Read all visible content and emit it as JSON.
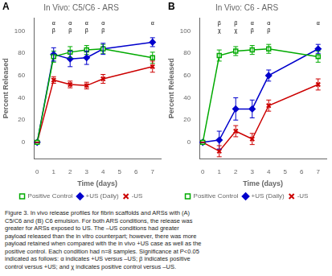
{
  "caption": "Figure 3. In vivo release profiles for fibrin scaffolds and ARSs with (A)\nC5/C6 and (B) C6 emulsion. For both ARS conditions, the release was\ngreater for ARSs exposed to US. The –US conditions had greater\npayload released than the in vitro counterpart; however, there was more\npayload retained when compared with the in vivo +US case as well as the\npositive control. Each condition had n=8 samples. Significance at P<0.05\nindicated as follows: α indicates +US versus –US; β indicates positive\ncontrol versus +US; and χ indicates positive control versus –US.",
  "chart_data": [
    {
      "type": "line",
      "panel_label": "A",
      "title": "In Vivo: C5/C6 - ARS",
      "x_label": "Time (days)",
      "y_label": "Percent Released",
      "x": [
        0,
        1,
        2,
        3,
        4,
        7
      ],
      "series": [
        {
          "name": "Positive Control",
          "color": "#00aa00",
          "marker": "square",
          "values": [
            0,
            77,
            81,
            83,
            84,
            76
          ],
          "errors": [
            0,
            5,
            5,
            4,
            4,
            5
          ]
        },
        {
          "name": "+US (Daily)",
          "color": "#0000cc",
          "marker": "diamond",
          "values": [
            0,
            79,
            75,
            76,
            84,
            90
          ],
          "errors": [
            0,
            6,
            7,
            6,
            5,
            4
          ]
        },
        {
          "name": "-US",
          "color": "#cc0000",
          "marker": "x",
          "values": [
            0,
            56,
            52,
            51,
            57,
            68
          ],
          "errors": [
            0,
            3,
            3,
            3,
            4,
            5
          ]
        }
      ],
      "annotations": [
        {
          "x": 1,
          "y": 104,
          "text": "α"
        },
        {
          "x": 2,
          "y": 104,
          "text": "α"
        },
        {
          "x": 3,
          "y": 104,
          "text": "α"
        },
        {
          "x": 4,
          "y": 104,
          "text": "α"
        },
        {
          "x": 7,
          "y": 104,
          "text": "α"
        },
        {
          "x": 1,
          "y": 98,
          "text": "β"
        },
        {
          "x": 2,
          "y": 98,
          "text": "β"
        },
        {
          "x": 3,
          "y": 98,
          "text": "β"
        },
        {
          "x": 4,
          "y": 98,
          "text": "β"
        }
      ],
      "xlim": [
        -0.2,
        7.5
      ],
      "ylim": [
        -15,
        112
      ],
      "xticks": [
        0,
        1,
        2,
        3,
        4,
        5,
        6,
        7
      ],
      "yticks": [
        0,
        20,
        40,
        60,
        80,
        100
      ],
      "grid": false,
      "legend": "bottom"
    },
    {
      "type": "line",
      "panel_label": "B",
      "title": "In Vivo: C6 - ARS",
      "x_label": "Time (days)",
      "y_label": "Percent Released",
      "x": [
        0,
        1,
        2,
        3,
        4,
        7
      ],
      "series": [
        {
          "name": "Positive Control",
          "color": "#00aa00",
          "marker": "square",
          "values": [
            0,
            78,
            82,
            83,
            84,
            77
          ],
          "errors": [
            0,
            5,
            4,
            4,
            4,
            5
          ]
        },
        {
          "name": "+US (Daily)",
          "color": "#0000cc",
          "marker": "diamond",
          "values": [
            0,
            2,
            30,
            30,
            60,
            84
          ],
          "errors": [
            0,
            8,
            10,
            8,
            5,
            4
          ]
        },
        {
          "name": "-US",
          "color": "#cc0000",
          "marker": "x",
          "values": [
            0,
            -8,
            10,
            3,
            33,
            52
          ],
          "errors": [
            0,
            5,
            5,
            5,
            5,
            5
          ]
        }
      ],
      "annotations": [
        {
          "x": 1,
          "y": 104,
          "text": "β"
        },
        {
          "x": 2,
          "y": 104,
          "text": "β"
        },
        {
          "x": 3,
          "y": 104,
          "text": "α"
        },
        {
          "x": 4,
          "y": 104,
          "text": "α"
        },
        {
          "x": 7,
          "y": 104,
          "text": "α"
        },
        {
          "x": 1,
          "y": 98,
          "text": "χ"
        },
        {
          "x": 2,
          "y": 98,
          "text": "χ"
        },
        {
          "x": 3,
          "y": 98,
          "text": "β"
        },
        {
          "x": 4,
          "y": 98,
          "text": "β"
        }
      ],
      "xlim": [
        -0.2,
        7.5
      ],
      "ylim": [
        -15,
        112
      ],
      "xticks": [
        0,
        1,
        2,
        3,
        4,
        5,
        6,
        7
      ],
      "yticks": [
        0,
        20,
        40,
        60,
        80,
        100
      ],
      "grid": false,
      "legend": "bottom"
    }
  ]
}
